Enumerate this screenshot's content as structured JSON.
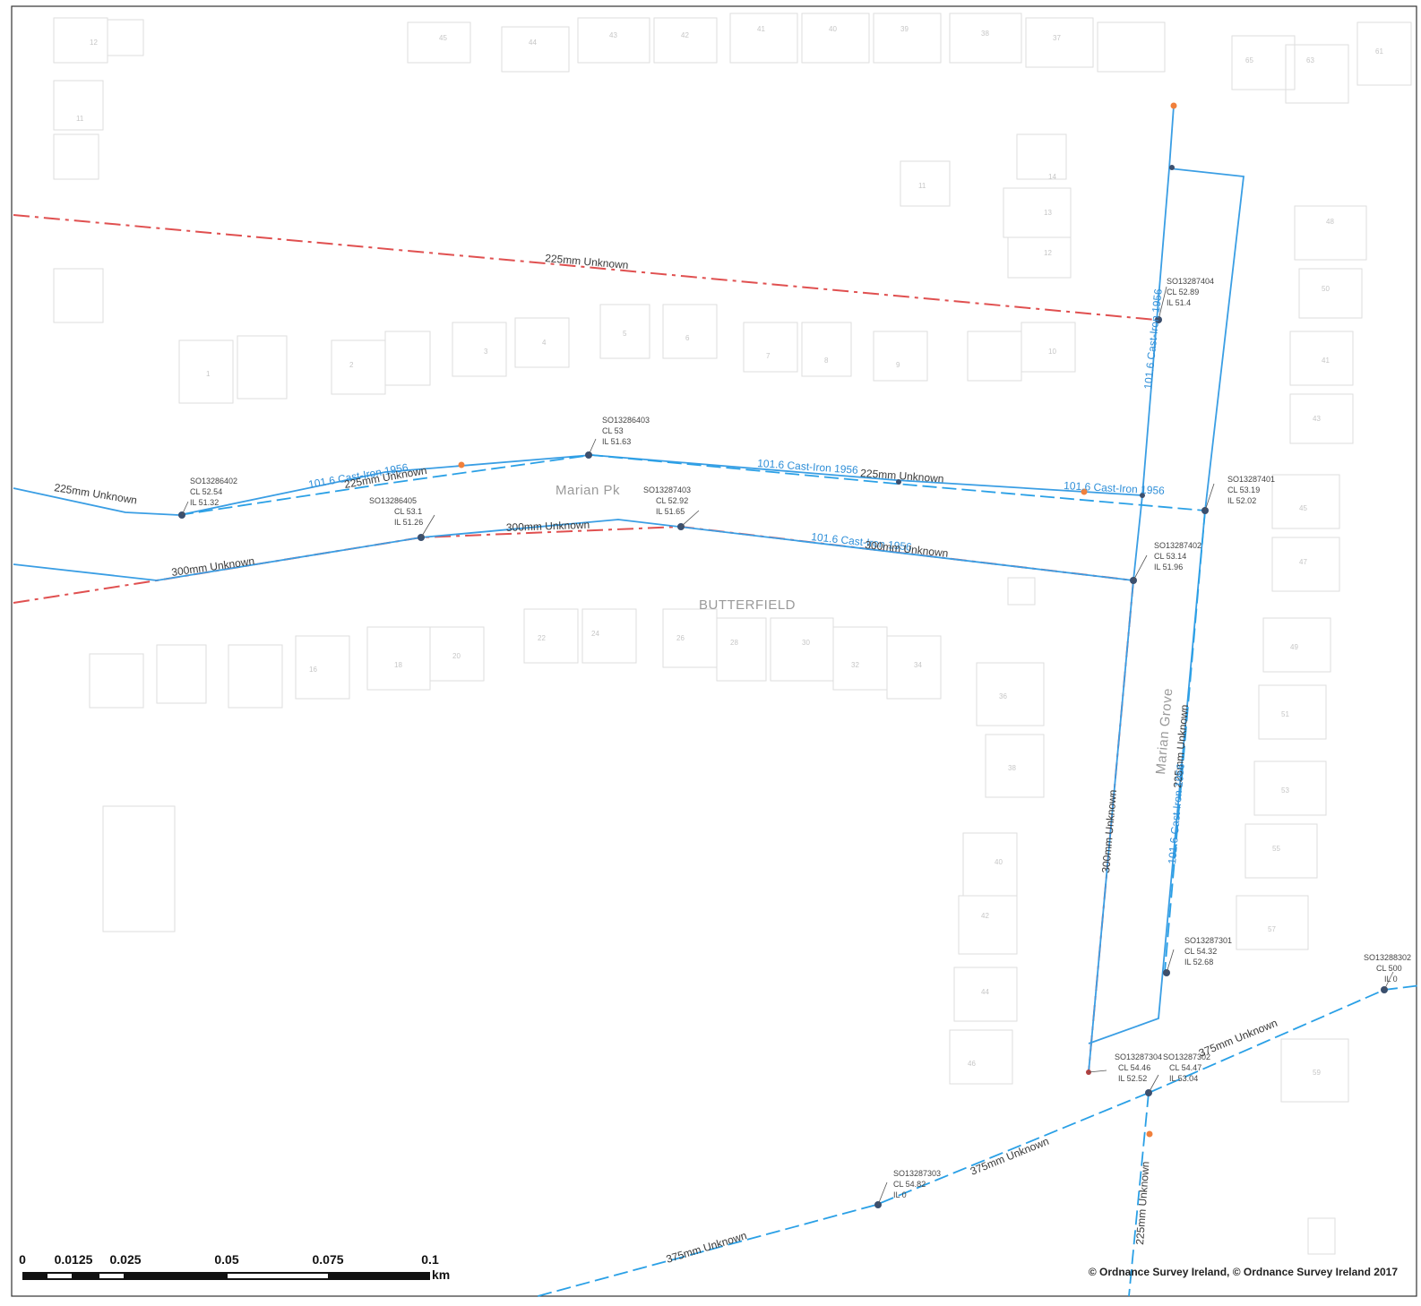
{
  "map": {
    "colors": {
      "water_main": "#3a9ee4",
      "foul_sewer": "#2aa0e6",
      "surface_water": "#e05050",
      "network_node": "#3b4f6e",
      "valve": "#f0803c",
      "building_outline": "#dedede",
      "frame": "#333333"
    },
    "street_names": {
      "marian_pk": "Marian Pk",
      "butterfield": "BUTTERFIELD",
      "marian_grove": "Marian Grove"
    },
    "pipe_labels": {
      "l225_top": "225mm Unknown",
      "l225_left": "225mm Unknown",
      "l101_a": "101.6 Cast-Iron 1956",
      "l225_a": "225mm Unknown",
      "l101_b": "101.6 Cast-Iron 1956",
      "l225_b": "225mm Unknown",
      "l101_c": "101.6 Cast-Iron 1956",
      "l300_left": "300mm Unknown",
      "l300_mid": "300mm Unknown",
      "l101_d": "101.6 Cast-Iron 1956",
      "l300_right": "300mm Unknown",
      "l101_vert_top": "101.6 Cast-Iron 1956",
      "l300_vert": "300mm Unknown",
      "l225_vert": "225mm Unknown",
      "l101_vert_bot": "101.6 Cast-Iron 1956",
      "l375_right": "375mm Unknown",
      "l375_mid": "375mm Unknown",
      "l375_bot": "375mm Unknown",
      "l225_bot_vert": "225mm Unknown"
    },
    "nodes": [
      {
        "id": "SO13287404",
        "cl": "CL 52.89",
        "il": "IL 51.4"
      },
      {
        "id": "SO13286403",
        "cl": "CL 53",
        "il": "IL 51.63"
      },
      {
        "id": "SO13286402",
        "cl": "CL 52.54",
        "il": "IL 51.32"
      },
      {
        "id": "SO13286405",
        "cl": "CL 53.1",
        "il": "IL 51.26"
      },
      {
        "id": "SO13287403",
        "cl": "CL 52.92",
        "il": "IL 51.65"
      },
      {
        "id": "SO13287401",
        "cl": "CL 53.19",
        "il": "IL 52.02"
      },
      {
        "id": "SO13287402",
        "cl": "CL 53.14",
        "il": "IL 51.96"
      },
      {
        "id": "SO13287301",
        "cl": "CL 54.32",
        "il": "IL 52.68"
      },
      {
        "id": "SO13288302",
        "cl": "CL 500",
        "il": "IL 0"
      },
      {
        "id": "SO13287304",
        "cl": "CL 54.46",
        "il": "IL 52.52"
      },
      {
        "id": "SO13287302",
        "cl": "CL 54.47",
        "il": "IL 53.04"
      },
      {
        "id": "SO13287303",
        "cl": "CL 54.82",
        "il": "IL 0"
      }
    ],
    "house_numbers": [
      "12",
      "11",
      "45",
      "44",
      "43",
      "42",
      "41",
      "40",
      "39",
      "38",
      "37",
      "14",
      "13",
      "12",
      "11",
      "10",
      "9",
      "8",
      "7",
      "6",
      "5",
      "4",
      "3",
      "2",
      "1",
      "16",
      "18",
      "20",
      "22",
      "24",
      "26",
      "28",
      "30",
      "32",
      "34",
      "36",
      "38",
      "40",
      "42",
      "44",
      "46",
      "48",
      "50",
      "41",
      "43",
      "45",
      "47",
      "49",
      "51",
      "53",
      "55",
      "57",
      "59",
      "61",
      "63",
      "65"
    ]
  },
  "scale_bar": {
    "ticks": [
      "0",
      "0.0125",
      "0.025",
      "0.05",
      "0.075",
      "0.1"
    ],
    "unit": "km"
  },
  "attribution": "© Ordnance Survey Ireland, © Ordnance Survey Ireland 2017"
}
